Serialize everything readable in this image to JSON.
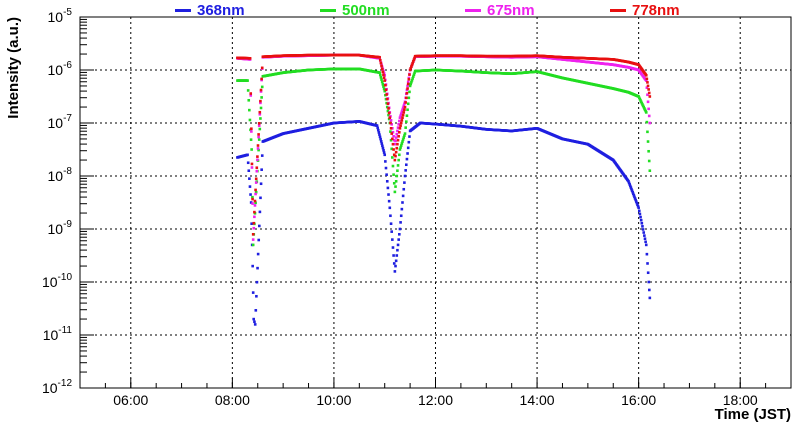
{
  "chart_data": {
    "type": "scatter",
    "title": "",
    "xlabel": "Time (JST)",
    "ylabel": "Intensity (a.u.)",
    "xlim": [
      5.0,
      19.0
    ],
    "ylim_log10": [
      -12,
      -5
    ],
    "yscale": "log",
    "grid": true,
    "legend_position": "top",
    "x_ticks": [
      6,
      8,
      10,
      12,
      14,
      16,
      18
    ],
    "x_tick_labels": [
      "06:00",
      "08:00",
      "10:00",
      "12:00",
      "14:00",
      "16:00",
      "18:00"
    ],
    "y_tick_exponents": [
      -12,
      -11,
      -10,
      -9,
      -8,
      -7,
      -6,
      -5
    ],
    "y_tick_base": "10",
    "y_tick_exponent_labels": [
      "-12",
      "-11",
      "-10",
      "-9",
      "-8",
      "-7",
      "-6",
      "-5"
    ],
    "series": [
      {
        "name": "368nm",
        "color": "#1f1fe0",
        "x": [
          8.1,
          8.3,
          8.37,
          8.4,
          8.42,
          8.45,
          8.6,
          9.0,
          9.5,
          10.0,
          10.5,
          10.85,
          11.0,
          11.1,
          11.2,
          11.3,
          11.4,
          11.5,
          11.7,
          12.0,
          12.5,
          13.0,
          13.5,
          14.0,
          14.5,
          15.0,
          15.5,
          15.8,
          16.0,
          16.15,
          16.2,
          16.22
        ],
        "y_log10": [
          -7.65,
          -7.6,
          -8.5,
          -9.7,
          -10.7,
          -10.8,
          -7.35,
          -7.2,
          -7.1,
          -7.0,
          -6.97,
          -7.05,
          -7.6,
          -8.6,
          -9.8,
          -9.0,
          -8.0,
          -7.15,
          -7.0,
          -7.02,
          -7.06,
          -7.12,
          -7.15,
          -7.1,
          -7.3,
          -7.4,
          -7.7,
          -8.1,
          -8.6,
          -9.3,
          -10.0,
          -10.3
        ]
      },
      {
        "name": "500nm",
        "color": "#22dd22",
        "x": [
          8.1,
          8.3,
          8.38,
          8.41,
          8.6,
          9.0,
          9.5,
          10.0,
          10.5,
          10.9,
          11.0,
          11.1,
          11.2,
          11.3,
          11.4,
          11.5,
          11.6,
          12.0,
          12.5,
          13.0,
          13.5,
          14.0,
          14.5,
          15.0,
          15.5,
          15.8,
          16.0,
          16.15,
          16.22
        ],
        "y_log10": [
          -6.2,
          -6.2,
          -7.5,
          -9.3,
          -6.12,
          -6.05,
          -6.0,
          -5.98,
          -5.98,
          -6.05,
          -6.4,
          -7.0,
          -8.3,
          -7.5,
          -7.2,
          -6.3,
          -6.02,
          -6.0,
          -6.02,
          -6.05,
          -6.07,
          -6.03,
          -6.15,
          -6.25,
          -6.35,
          -6.42,
          -6.5,
          -6.8,
          -7.9
        ]
      },
      {
        "name": "675nm",
        "color": "#ee22ee",
        "x": [
          8.1,
          8.35,
          8.41,
          8.6,
          9.0,
          9.5,
          10.0,
          10.5,
          10.9,
          11.0,
          11.1,
          11.2,
          11.3,
          11.4,
          11.5,
          11.6,
          12.0,
          12.5,
          13.0,
          13.5,
          14.0,
          14.5,
          15.0,
          15.5,
          15.8,
          16.0,
          16.15,
          16.22
        ],
        "y_log10": [
          -5.78,
          -5.8,
          -9.2,
          -5.76,
          -5.74,
          -5.73,
          -5.72,
          -5.72,
          -5.78,
          -6.1,
          -6.8,
          -7.4,
          -6.9,
          -6.6,
          -6.0,
          -5.75,
          -5.74,
          -5.74,
          -5.75,
          -5.76,
          -5.75,
          -5.8,
          -5.85,
          -5.9,
          -5.95,
          -6.0,
          -6.2,
          -7.0
        ]
      },
      {
        "name": "778nm",
        "color": "#e81010",
        "x": [
          8.1,
          8.35,
          8.41,
          8.6,
          9.0,
          9.5,
          10.0,
          10.5,
          10.9,
          11.0,
          11.1,
          11.2,
          11.3,
          11.4,
          11.5,
          11.6,
          12.0,
          12.5,
          13.0,
          13.5,
          14.0,
          14.5,
          15.0,
          15.5,
          15.8,
          16.0,
          16.15,
          16.22
        ],
        "y_log10": [
          -5.77,
          -5.78,
          -9.1,
          -5.75,
          -5.73,
          -5.72,
          -5.72,
          -5.72,
          -5.76,
          -6.2,
          -6.9,
          -7.7,
          -7.1,
          -6.7,
          -6.0,
          -5.74,
          -5.73,
          -5.73,
          -5.74,
          -5.74,
          -5.73,
          -5.76,
          -5.78,
          -5.8,
          -5.85,
          -5.9,
          -6.1,
          -6.5
        ]
      }
    ]
  }
}
